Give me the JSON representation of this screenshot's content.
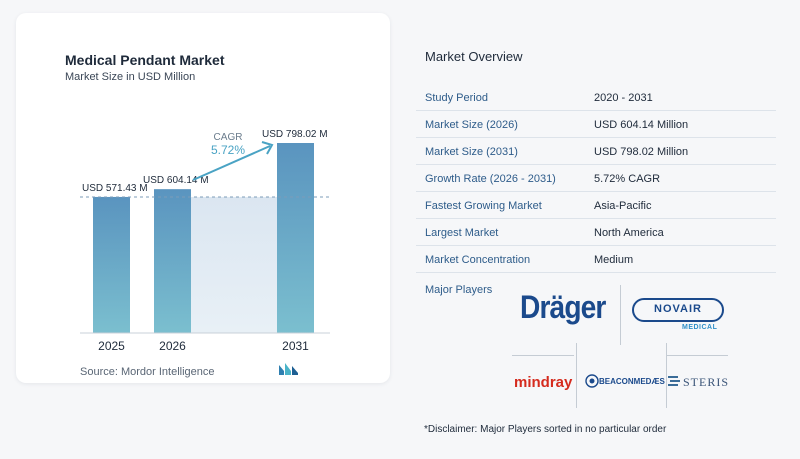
{
  "chart_card": {
    "title": "Medical Pendant Market",
    "subtitle": "Market Size in USD Million",
    "source": "Source:  Mordor Intelligence"
  },
  "chart_data": {
    "type": "bar",
    "title": "Medical Pendant Market",
    "subtitle": "Market Size in USD Million",
    "categories": [
      "2025",
      "2026",
      "2031"
    ],
    "values": [
      571.43,
      604.14,
      798.02
    ],
    "data_labels": [
      "USD 571.43 M",
      "USD 604.14 M",
      "USD 798.02 M"
    ],
    "cagr_label": "CAGR",
    "cagr_value": "5.72%",
    "ylim": [
      0,
      800
    ],
    "bar_color": "#5b9ec4"
  },
  "overview": {
    "title": "Market Overview",
    "rows": [
      {
        "label": "Study Period",
        "value": "2020 - 2031"
      },
      {
        "label": "Market Size (2026)",
        "value": "USD 604.14 Million"
      },
      {
        "label": "Market Size (2031)",
        "value": "USD 798.02 Million"
      },
      {
        "label": "Growth Rate (2026 - 2031)",
        "value": "5.72% CAGR"
      },
      {
        "label": "Fastest Growing Market",
        "value": "Asia-Pacific"
      },
      {
        "label": "Largest Market",
        "value": "North America"
      },
      {
        "label": "Market Concentration",
        "value": "Medium"
      }
    ],
    "players_label": "Major Players",
    "players": {
      "drager": "Dräger",
      "novair": "NOVAIR",
      "novair_sub": "MEDICAL",
      "mindray": "mindray",
      "beaconmedaes": "BEACONMEDÆS",
      "steris": "STERIS"
    },
    "disclaimer": "*Disclaimer: Major Players sorted in no particular order"
  },
  "colors": {
    "label_blue": "#2e5c8a",
    "drager_blue": "#1b4a8c",
    "mindray_red": "#d52b1e",
    "accent_teal": "#4aa3c4"
  }
}
